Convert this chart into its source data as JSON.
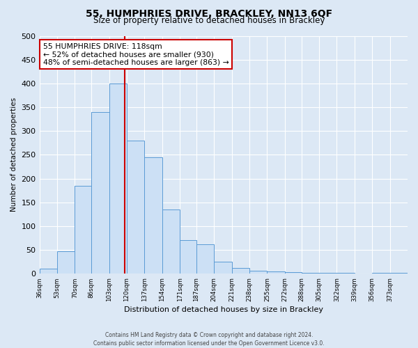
{
  "title": "55, HUMPHRIES DRIVE, BRACKLEY, NN13 6QF",
  "subtitle": "Size of property relative to detached houses in Brackley",
  "xlabel": "Distribution of detached houses by size in Brackley",
  "ylabel": "Number of detached properties",
  "bin_labels": [
    "36sqm",
    "53sqm",
    "70sqm",
    "86sqm",
    "103sqm",
    "120sqm",
    "137sqm",
    "154sqm",
    "171sqm",
    "187sqm",
    "204sqm",
    "221sqm",
    "238sqm",
    "255sqm",
    "272sqm",
    "288sqm",
    "305sqm",
    "322sqm",
    "339sqm",
    "356sqm",
    "373sqm"
  ],
  "bin_edges": [
    36,
    53,
    70,
    86,
    103,
    120,
    137,
    154,
    171,
    187,
    204,
    221,
    238,
    255,
    272,
    288,
    305,
    322,
    339,
    356,
    373,
    390
  ],
  "bar_heights": [
    10,
    47,
    185,
    340,
    400,
    280,
    245,
    135,
    70,
    62,
    25,
    12,
    7,
    5,
    3,
    2,
    2,
    2,
    0,
    2,
    2
  ],
  "bar_facecolor": "#cce0f5",
  "bar_edgecolor": "#5b9bd5",
  "vline_x": 118,
  "vline_color": "#cc0000",
  "annotation_title": "55 HUMPHRIES DRIVE: 118sqm",
  "annotation_line1": "← 52% of detached houses are smaller (930)",
  "annotation_line2": "48% of semi-detached houses are larger (863) →",
  "annotation_box_facecolor": "#ffffff",
  "annotation_box_edgecolor": "#cc0000",
  "ylim": [
    0,
    500
  ],
  "yticks": [
    0,
    50,
    100,
    150,
    200,
    250,
    300,
    350,
    400,
    450,
    500
  ],
  "background_color": "#dce8f5",
  "grid_color": "#ffffff",
  "footer_line1": "Contains HM Land Registry data © Crown copyright and database right 2024.",
  "footer_line2": "Contains public sector information licensed under the Open Government Licence v3.0."
}
